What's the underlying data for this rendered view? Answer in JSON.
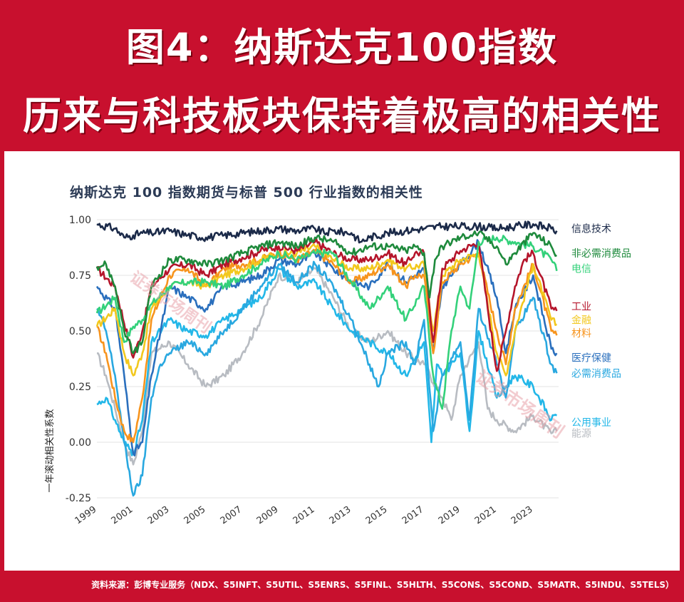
{
  "header": {
    "line1": "图4：纳斯达克100指数",
    "line2": "历来与科技板块保持着极高的相关性"
  },
  "footer": {
    "source": "资料来源：彭博专业服务（NDX、S5INFT、S5UTIL、S5ENRS、S5FINL、S5HLTH、S5CONS、S5COND、S5MATR、S5INDU、S5TELS）"
  },
  "watermark": {
    "text": "证券市场周刊"
  },
  "chart_data": {
    "type": "line",
    "title": "纳斯达克 100 指数期货与标普 500 行业指数的相关性",
    "ylabel": "一年滚动相关性系数",
    "xlabel": "",
    "xlim": [
      1999,
      2024.4
    ],
    "ylim": [
      -0.25,
      1.0
    ],
    "xticks": [
      1999,
      2001,
      2003,
      2005,
      2007,
      2009,
      2011,
      2013,
      2015,
      2017,
      2019,
      2021,
      2023
    ],
    "yticks": [
      -0.25,
      0.0,
      0.25,
      0.5,
      0.75,
      1.0
    ],
    "ytick_labels": [
      "-0.25",
      "0.00",
      "0.25",
      "0.50",
      "0.75",
      "1.00"
    ],
    "grid": true,
    "legend": "right",
    "series": [
      {
        "name": "信息技术",
        "color": "#1b2a49",
        "x": [
          1999,
          2000,
          2000.5,
          2001,
          2001.5,
          2002,
          2003,
          2004,
          2005,
          2006,
          2007,
          2008,
          2009,
          2010,
          2011,
          2011.5,
          2012,
          2013,
          2013.5,
          2014,
          2015,
          2016,
          2017,
          2018,
          2019,
          2020,
          2021,
          2022,
          2023,
          2024,
          2024.3
        ],
        "y": [
          0.98,
          0.96,
          0.92,
          0.93,
          0.94,
          0.94,
          0.95,
          0.93,
          0.92,
          0.93,
          0.94,
          0.95,
          0.96,
          0.95,
          0.96,
          0.94,
          0.95,
          0.94,
          0.9,
          0.92,
          0.94,
          0.95,
          0.96,
          0.97,
          0.97,
          0.97,
          0.96,
          0.97,
          0.98,
          0.96,
          0.95
        ]
      },
      {
        "name": "非必需消费品",
        "color": "#1e8a3c",
        "x": [
          1999,
          1999.5,
          2000,
          2000.5,
          2001,
          2001.5,
          2002,
          2003,
          2004,
          2005,
          2006,
          2007,
          2008,
          2009,
          2010,
          2011,
          2012,
          2013,
          2014,
          2015,
          2016,
          2016.5,
          2017,
          2017.3,
          2017.6,
          2018,
          2019,
          2020,
          2021,
          2021.5,
          2022,
          2023,
          2024,
          2024.3
        ],
        "y": [
          0.79,
          0.8,
          0.7,
          0.5,
          0.4,
          0.45,
          0.7,
          0.82,
          0.82,
          0.8,
          0.82,
          0.85,
          0.88,
          0.9,
          0.88,
          0.92,
          0.9,
          0.85,
          0.88,
          0.88,
          0.86,
          0.88,
          0.85,
          0.65,
          0.82,
          0.88,
          0.92,
          0.94,
          0.88,
          0.8,
          0.85,
          0.94,
          0.88,
          0.84
        ]
      },
      {
        "name": "电信",
        "color": "#33d17a",
        "x": [
          1999,
          2000,
          2000.5,
          2001,
          2001.5,
          2002,
          2003,
          2004,
          2005,
          2006,
          2007,
          2008,
          2009,
          2010,
          2011,
          2012,
          2013,
          2014,
          2015,
          2016,
          2017,
          2017.5,
          2018,
          2018.5,
          2019,
          2019.5,
          2020,
          2021,
          2022,
          2023,
          2024,
          2024.3
        ],
        "y": [
          0.58,
          0.65,
          0.45,
          0.52,
          0.55,
          0.62,
          0.7,
          0.72,
          0.72,
          0.7,
          0.75,
          0.8,
          0.85,
          0.82,
          0.85,
          0.85,
          0.72,
          0.6,
          0.7,
          0.55,
          0.7,
          0.3,
          0.15,
          0.5,
          0.7,
          0.6,
          0.9,
          0.92,
          0.9,
          0.88,
          0.82,
          0.77
        ]
      },
      {
        "name": "工业",
        "color": "#b5152b",
        "x": [
          1999,
          2000,
          2001,
          2001.5,
          2002,
          2003,
          2004,
          2005,
          2006,
          2007,
          2008,
          2009,
          2010,
          2011,
          2012,
          2013,
          2014,
          2015,
          2016,
          2016.5,
          2017,
          2017.5,
          2018,
          2019,
          2020,
          2020.5,
          2021,
          2021.5,
          2022,
          2022.5,
          2023,
          2024,
          2024.3
        ],
        "y": [
          0.78,
          0.7,
          0.38,
          0.5,
          0.7,
          0.78,
          0.8,
          0.75,
          0.8,
          0.83,
          0.86,
          0.88,
          0.86,
          0.9,
          0.85,
          0.82,
          0.82,
          0.85,
          0.8,
          0.85,
          0.85,
          0.45,
          0.78,
          0.86,
          0.9,
          0.6,
          0.32,
          0.5,
          0.7,
          0.82,
          0.85,
          0.6,
          0.59
        ]
      },
      {
        "name": "金融",
        "color": "#f2c81e",
        "x": [
          1999,
          2000,
          2000.5,
          2001,
          2001.5,
          2002,
          2003,
          2004,
          2005,
          2006,
          2007,
          2008,
          2009,
          2010,
          2011,
          2012,
          2013,
          2014,
          2015,
          2016,
          2017,
          2017.5,
          2018,
          2019,
          2020,
          2021,
          2021.5,
          2022,
          2023,
          2024,
          2024.3
        ],
        "y": [
          0.52,
          0.6,
          0.4,
          0.3,
          0.4,
          0.6,
          0.7,
          0.72,
          0.7,
          0.75,
          0.78,
          0.82,
          0.85,
          0.85,
          0.88,
          0.82,
          0.78,
          0.78,
          0.82,
          0.78,
          0.8,
          0.5,
          0.75,
          0.82,
          0.85,
          0.4,
          0.3,
          0.5,
          0.8,
          0.55,
          0.53
        ]
      },
      {
        "name": "材料",
        "color": "#f7941d",
        "x": [
          1999,
          1999.5,
          2000,
          2000.5,
          2001,
          2001.5,
          2002,
          2003,
          2004,
          2005,
          2006,
          2007,
          2008,
          2009,
          2010,
          2011,
          2012,
          2013,
          2014,
          2015,
          2016,
          2016.5,
          2017,
          2017.5,
          2018,
          2019,
          2020,
          2021,
          2021.5,
          2022,
          2023,
          2024,
          2024.3
        ],
        "y": [
          0.52,
          0.4,
          0.2,
          0.05,
          0.0,
          0.2,
          0.55,
          0.75,
          0.78,
          0.7,
          0.78,
          0.8,
          0.82,
          0.85,
          0.82,
          0.86,
          0.8,
          0.72,
          0.75,
          0.8,
          0.7,
          0.75,
          0.75,
          0.4,
          0.72,
          0.8,
          0.85,
          0.5,
          0.35,
          0.6,
          0.8,
          0.5,
          0.48
        ]
      },
      {
        "name": "医疗保健",
        "color": "#2a6fbd",
        "x": [
          1999,
          2000,
          2000.5,
          2001,
          2001.5,
          2002,
          2003,
          2004,
          2005,
          2006,
          2007,
          2008,
          2009,
          2010,
          2011,
          2012,
          2013,
          2014,
          2015,
          2016,
          2017,
          2017.5,
          2018,
          2019,
          2020,
          2021,
          2021.5,
          2022,
          2023,
          2024,
          2024.3
        ],
        "y": [
          0.7,
          0.6,
          0.3,
          -0.05,
          0.0,
          0.3,
          0.7,
          0.65,
          0.6,
          0.7,
          0.72,
          0.75,
          0.82,
          0.8,
          0.85,
          0.78,
          0.72,
          0.7,
          0.8,
          0.72,
          0.78,
          0.4,
          0.7,
          0.8,
          0.9,
          0.65,
          0.4,
          0.6,
          0.75,
          0.42,
          0.4
        ]
      },
      {
        "name": "必需消费品",
        "color": "#29a8e0",
        "x": [
          1999,
          1999.5,
          2000,
          2000.5,
          2001,
          2001.5,
          2002,
          2002.5,
          2003,
          2004,
          2005,
          2006,
          2007,
          2008,
          2009,
          2010,
          2011,
          2012,
          2013,
          2014,
          2014.5,
          2015,
          2016,
          2016.5,
          2017,
          2017.5,
          2018,
          2019,
          2019.5,
          2020,
          2021,
          2021.5,
          2022,
          2023,
          2024,
          2024.3
        ],
        "y": [
          0.6,
          0.5,
          0.3,
          0.0,
          -0.24,
          -0.15,
          0.2,
          0.35,
          0.4,
          0.45,
          0.4,
          0.5,
          0.6,
          0.7,
          0.8,
          0.72,
          0.8,
          0.7,
          0.55,
          0.35,
          0.25,
          0.4,
          0.45,
          0.35,
          0.55,
          0.05,
          0.3,
          0.45,
          0.1,
          0.6,
          0.35,
          0.2,
          0.5,
          0.65,
          0.35,
          0.31
        ]
      },
      {
        "name": "公用事业",
        "color": "#23b7e8",
        "x": [
          1999,
          1999.5,
          2000,
          2000.5,
          2001,
          2001.5,
          2002,
          2003,
          2004,
          2005,
          2006,
          2007,
          2008,
          2009,
          2010,
          2011,
          2012,
          2013,
          2014,
          2015,
          2016,
          2017,
          2017.4,
          2017.7,
          2018,
          2019,
          2019.5,
          2020,
          2021,
          2022,
          2023,
          2024,
          2024.3
        ],
        "y": [
          0.17,
          0.2,
          0.1,
          0.0,
          -0.05,
          0.1,
          0.45,
          0.55,
          0.5,
          0.48,
          0.55,
          0.6,
          0.65,
          0.78,
          0.7,
          0.72,
          0.6,
          0.5,
          0.45,
          0.4,
          0.3,
          0.45,
          0.0,
          0.35,
          0.3,
          0.4,
          0.05,
          0.5,
          0.2,
          0.3,
          0.25,
          0.1,
          0.12
        ]
      },
      {
        "name": "能源",
        "color": "#b8bcc2",
        "x": [
          1999,
          1999.5,
          2000,
          2000.5,
          2001,
          2001.5,
          2002,
          2003,
          2004,
          2005,
          2006,
          2007,
          2008,
          2009,
          2010,
          2011,
          2012,
          2013,
          2014,
          2015,
          2016,
          2017,
          2018,
          2018.5,
          2019,
          2020,
          2020.5,
          2021,
          2022,
          2023,
          2024,
          2024.3
        ],
        "y": [
          0.4,
          0.3,
          0.15,
          0.0,
          -0.1,
          0.05,
          0.4,
          0.45,
          0.35,
          0.25,
          0.3,
          0.4,
          0.55,
          0.75,
          0.72,
          0.78,
          0.65,
          0.5,
          0.45,
          0.5,
          0.4,
          0.35,
          0.2,
          0.1,
          0.3,
          0.45,
          0.15,
          0.1,
          0.05,
          0.12,
          0.04,
          0.05
        ]
      }
    ],
    "legend_labels": [
      {
        "text": "信息技术",
        "color": "#1b2a49",
        "y": 0.96
      },
      {
        "text": "非必需消费品",
        "color": "#1e8a3c",
        "y": 0.85
      },
      {
        "text": "电信",
        "color": "#33d17a",
        "y": 0.78
      },
      {
        "text": "工业",
        "color": "#b5152b",
        "y": 0.61
      },
      {
        "text": "金融",
        "color": "#f2c81e",
        "y": 0.55
      },
      {
        "text": "材料",
        "color": "#f7941d",
        "y": 0.49
      },
      {
        "text": "医疗保健",
        "color": "#2a6fbd",
        "y": 0.38
      },
      {
        "text": "必需消费品",
        "color": "#29a8e0",
        "y": 0.31
      },
      {
        "text": "公用事业",
        "color": "#23b7e8",
        "y": 0.09
      },
      {
        "text": "能源",
        "color": "#b8bcc2",
        "y": 0.04
      }
    ]
  }
}
